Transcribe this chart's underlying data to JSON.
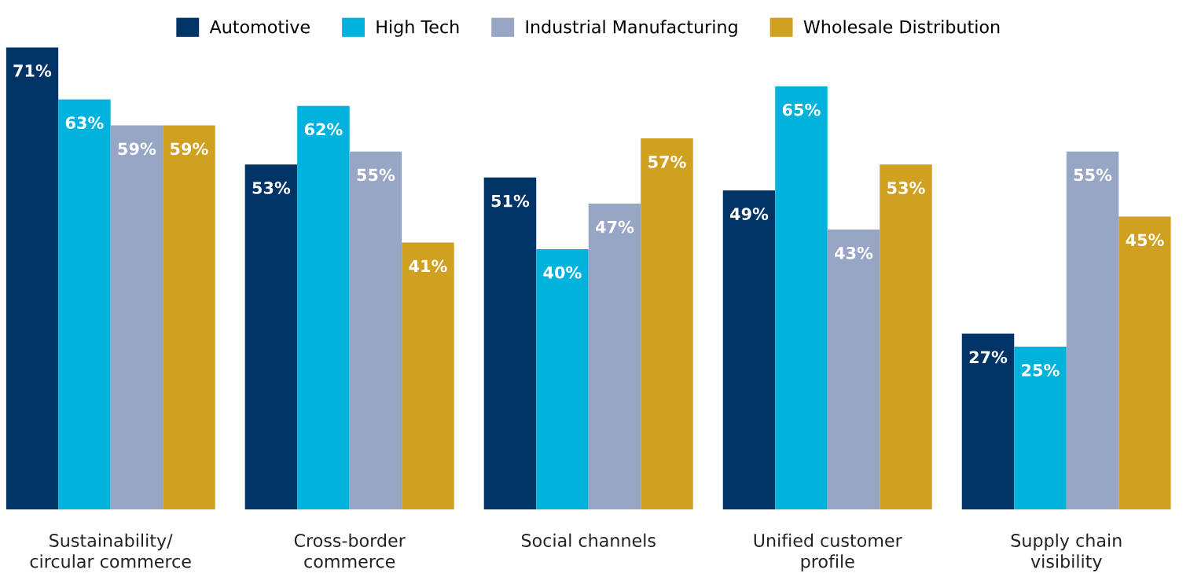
{
  "chart_data": {
    "type": "bar",
    "categories": [
      "Sustainability/\ncircular commerce",
      "Cross-border\ncommerce",
      "Social channels",
      "Unified customer\nprofile",
      "Supply chain\nvisibility"
    ],
    "series": [
      {
        "name": "Automotive",
        "color": "#003366",
        "values": [
          71,
          53,
          51,
          49,
          27
        ],
        "value_labels": [
          "71%",
          "53%",
          "51%",
          "49%",
          "27%"
        ]
      },
      {
        "name": "High Tech",
        "color": "#00b2dc",
        "values": [
          63,
          62,
          40,
          65,
          25
        ],
        "value_labels": [
          "63%",
          "62%",
          "40%",
          "65%",
          "25%"
        ]
      },
      {
        "name": "Industrial Manufacturing",
        "color": "#98a6c6",
        "values": [
          59,
          55,
          47,
          43,
          55
        ],
        "value_labels": [
          "59%",
          "55%",
          "47%",
          "43%",
          "55%"
        ]
      },
      {
        "name": "Wholesale Distribution",
        "color": "#d0a020",
        "values": [
          59,
          41,
          57,
          53,
          45
        ],
        "value_labels": [
          "59%",
          "41%",
          "57%",
          "53%",
          "45%"
        ]
      }
    ],
    "legend": "top",
    "grid": false,
    "tick_labels": "x"
  }
}
